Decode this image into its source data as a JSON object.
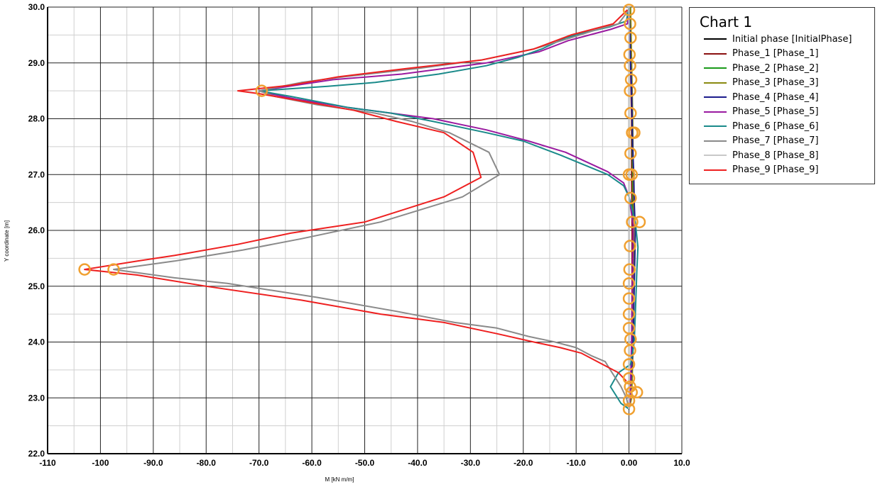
{
  "chart_data": {
    "type": "line",
    "title": "Chart 1",
    "xlabel": "M [kN m/m]",
    "ylabel": "Y coordinate [m]",
    "xlim": [
      -110,
      10
    ],
    "ylim": [
      22,
      30
    ],
    "grid": true,
    "legend_position": "right",
    "x_ticks": [
      "-110",
      "-100",
      "-90.0",
      "-80.0",
      "-70.0",
      "-60.0",
      "-50.0",
      "-40.0",
      "-30.0",
      "-20.0",
      "-10.0",
      "0.00",
      "10.0"
    ],
    "y_ticks": [
      "22.0",
      "23.0",
      "24.0",
      "25.0",
      "26.0",
      "27.0",
      "28.0",
      "29.0",
      "30.0"
    ],
    "series": [
      {
        "name": "Initial phase [InitialPhase]",
        "color": "#000000",
        "points": [
          [
            0,
            30.0
          ],
          [
            0,
            29.0
          ],
          [
            0,
            28.0
          ],
          [
            0,
            27.0
          ],
          [
            0,
            26.0
          ],
          [
            0,
            25.0
          ],
          [
            0,
            24.0
          ],
          [
            0,
            23.0
          ],
          [
            0,
            22.8
          ]
        ]
      },
      {
        "name": "Phase_1 [Phase_1]",
        "color": "#8b1010",
        "points": [
          [
            0.2,
            30.0
          ],
          [
            0.3,
            29.0
          ],
          [
            0.5,
            28.0
          ],
          [
            0.5,
            27.0
          ],
          [
            0.6,
            26.0
          ],
          [
            0.6,
            25.0
          ],
          [
            0.5,
            24.0
          ],
          [
            0.3,
            23.0
          ],
          [
            0,
            22.8
          ]
        ]
      },
      {
        "name": "Phase_2 [Phase_2]",
        "color": "#1a9a1a",
        "points": [
          [
            0.2,
            30.0
          ],
          [
            0.4,
            29.0
          ],
          [
            0.6,
            28.0
          ],
          [
            0.7,
            27.0
          ],
          [
            0.8,
            26.0
          ],
          [
            0.8,
            25.0
          ],
          [
            0.7,
            24.0
          ],
          [
            0.4,
            23.0
          ],
          [
            0,
            22.8
          ]
        ]
      },
      {
        "name": "Phase_3 [Phase_3]",
        "color": "#8a8a10",
        "points": [
          [
            0.3,
            30.0
          ],
          [
            0.5,
            29.0
          ],
          [
            0.7,
            28.0
          ],
          [
            0.8,
            27.0
          ],
          [
            0.9,
            26.0
          ],
          [
            0.9,
            25.0
          ],
          [
            0.8,
            24.0
          ],
          [
            0.5,
            23.0
          ],
          [
            0,
            22.8
          ]
        ]
      },
      {
        "name": "Phase_4 [Phase_4]",
        "color": "#1c1c8c",
        "points": [
          [
            0,
            30.0
          ],
          [
            0.2,
            29.5
          ],
          [
            0.3,
            29.0
          ],
          [
            0.5,
            28.5
          ],
          [
            0.6,
            28.0
          ],
          [
            0.7,
            27.5
          ],
          [
            0.9,
            27.0
          ],
          [
            1.0,
            26.5
          ],
          [
            1.2,
            26.0
          ],
          [
            1.1,
            25.5
          ],
          [
            1.0,
            25.0
          ],
          [
            0.9,
            24.5
          ],
          [
            0.8,
            24.0
          ],
          [
            0.5,
            23.5
          ],
          [
            0.2,
            23.0
          ],
          [
            0,
            22.8
          ]
        ]
      },
      {
        "name": "Phase_5 [Phase_5]",
        "color": "#9a1aa0",
        "points": [
          [
            0,
            30.0
          ],
          [
            -0.3,
            29.7
          ],
          [
            -3.5,
            29.6
          ],
          [
            -7.5,
            29.5
          ],
          [
            -11.5,
            29.4
          ],
          [
            -17,
            29.2
          ],
          [
            -27,
            29.0
          ],
          [
            -43,
            28.8
          ],
          [
            -56,
            28.7
          ],
          [
            -70,
            28.5
          ],
          [
            -68,
            28.45
          ],
          [
            -63,
            28.35
          ],
          [
            -53,
            28.2
          ],
          [
            -45,
            28.1
          ],
          [
            -37,
            28.0
          ],
          [
            -27,
            27.8
          ],
          [
            -19,
            27.6
          ],
          [
            -12,
            27.4
          ],
          [
            -4,
            27.05
          ],
          [
            -1,
            26.85
          ],
          [
            0,
            26.6
          ],
          [
            0.8,
            26.1
          ],
          [
            0.7,
            25.3
          ],
          [
            0.5,
            24.0
          ],
          [
            0.2,
            23.0
          ],
          [
            0,
            22.8
          ]
        ]
      },
      {
        "name": "Phase_6 [Phase_6]",
        "color": "#1a8a8a",
        "points": [
          [
            0,
            30.0
          ],
          [
            -0.5,
            29.75
          ],
          [
            -3.5,
            29.65
          ],
          [
            -8,
            29.55
          ],
          [
            -12,
            29.45
          ],
          [
            -16.5,
            29.25
          ],
          [
            -21,
            29.1
          ],
          [
            -27,
            28.95
          ],
          [
            -36,
            28.8
          ],
          [
            -48,
            28.65
          ],
          [
            -57,
            28.58
          ],
          [
            -70,
            28.5
          ],
          [
            -67,
            28.45
          ],
          [
            -64,
            28.4
          ],
          [
            -53,
            28.2
          ],
          [
            -45,
            28.1
          ],
          [
            -37,
            27.95
          ],
          [
            -27,
            27.75
          ],
          [
            -20,
            27.6
          ],
          [
            -13,
            27.35
          ],
          [
            -4,
            27.0
          ],
          [
            -1,
            26.8
          ],
          [
            0,
            26.6
          ],
          [
            1.2,
            26.15
          ],
          [
            1.7,
            25.7
          ],
          [
            1.5,
            25.3
          ],
          [
            1.2,
            24.5
          ],
          [
            1.0,
            24.0
          ],
          [
            0.3,
            23.6
          ],
          [
            -2.0,
            23.45
          ],
          [
            -3.5,
            23.2
          ],
          [
            -1.5,
            22.9
          ],
          [
            0,
            22.8
          ]
        ]
      },
      {
        "name": "Phase_7 [Phase_7]",
        "color": "#8a8a8a",
        "points": [
          [
            0,
            29.95
          ],
          [
            -2,
            29.7
          ],
          [
            -6,
            29.6
          ],
          [
            -11,
            29.45
          ],
          [
            -18,
            29.25
          ],
          [
            -28,
            29.05
          ],
          [
            -40,
            28.9
          ],
          [
            -54,
            28.75
          ],
          [
            -62,
            28.65
          ],
          [
            -70,
            28.5
          ],
          [
            -67,
            28.4
          ],
          [
            -59,
            28.25
          ],
          [
            -48,
            28.1
          ],
          [
            -41,
            27.95
          ],
          [
            -34,
            27.75
          ],
          [
            -26.5,
            27.4
          ],
          [
            -24.5,
            27.0
          ],
          [
            -31.5,
            26.6
          ],
          [
            -47,
            26.15
          ],
          [
            -62,
            25.85
          ],
          [
            -73,
            25.65
          ],
          [
            -86,
            25.45
          ],
          [
            -97.5,
            25.3
          ],
          [
            -86,
            25.15
          ],
          [
            -76,
            25.05
          ],
          [
            -59,
            24.8
          ],
          [
            -44,
            24.55
          ],
          [
            -33,
            24.35
          ],
          [
            -25,
            24.25
          ],
          [
            -19,
            24.1
          ],
          [
            -14,
            24.0
          ],
          [
            -10,
            23.9
          ],
          [
            -7,
            23.75
          ],
          [
            -4.5,
            23.65
          ],
          [
            -3.2,
            23.45
          ],
          [
            -1.5,
            23.2
          ],
          [
            -0.5,
            23.0
          ],
          [
            0,
            22.8
          ]
        ]
      },
      {
        "name": "Phase_8 [Phase_8]",
        "color": "#c8c8c8",
        "points": [
          [
            0,
            30.0
          ],
          [
            0,
            28.5
          ],
          [
            0,
            27.0
          ],
          [
            0,
            25.3
          ],
          [
            0,
            23.0
          ],
          [
            0,
            22.8
          ]
        ]
      },
      {
        "name": "Phase_9 [Phase_9]",
        "color": "#ee2020",
        "points": [
          [
            -0.3,
            29.95
          ],
          [
            -3,
            29.7
          ],
          [
            -7,
            29.6
          ],
          [
            -11,
            29.5
          ],
          [
            -18,
            29.25
          ],
          [
            -28,
            29.05
          ],
          [
            -42,
            28.9
          ],
          [
            -55,
            28.75
          ],
          [
            -64,
            28.6
          ],
          [
            -74,
            28.5
          ],
          [
            -70,
            28.45
          ],
          [
            -64,
            28.35
          ],
          [
            -52,
            28.15
          ],
          [
            -44,
            27.95
          ],
          [
            -35,
            27.75
          ],
          [
            -29.5,
            27.4
          ],
          [
            -28,
            26.95
          ],
          [
            -35,
            26.6
          ],
          [
            -50,
            26.15
          ],
          [
            -64,
            25.95
          ],
          [
            -74,
            25.75
          ],
          [
            -86,
            25.55
          ],
          [
            -93,
            25.45
          ],
          [
            -103,
            25.3
          ],
          [
            -93,
            25.2
          ],
          [
            -80,
            25.0
          ],
          [
            -62,
            24.75
          ],
          [
            -47,
            24.5
          ],
          [
            -35,
            24.35
          ],
          [
            -25,
            24.15
          ],
          [
            -18,
            24.0
          ],
          [
            -13,
            23.9
          ],
          [
            -9,
            23.8
          ],
          [
            -5,
            23.6
          ],
          [
            -2,
            23.45
          ],
          [
            -0.5,
            23.3
          ]
        ]
      }
    ],
    "markers": [
      [
        0.0,
        29.95
      ],
      [
        0.2,
        29.7
      ],
      [
        0.3,
        29.45
      ],
      [
        0.1,
        29.15
      ],
      [
        0.2,
        28.95
      ],
      [
        0.4,
        28.7
      ],
      [
        0.2,
        28.5
      ],
      [
        0.3,
        28.1
      ],
      [
        0.6,
        27.75
      ],
      [
        1.0,
        27.75
      ],
      [
        0.3,
        27.38
      ],
      [
        0.0,
        27.0
      ],
      [
        0.5,
        27.0
      ],
      [
        0.3,
        26.58
      ],
      [
        0.6,
        26.15
      ],
      [
        2.0,
        26.15
      ],
      [
        0.2,
        25.72
      ],
      [
        0.1,
        25.3
      ],
      [
        0.0,
        25.05
      ],
      [
        0.0,
        24.78
      ],
      [
        0.0,
        24.5
      ],
      [
        0.0,
        24.25
      ],
      [
        0.3,
        24.05
      ],
      [
        0.2,
        23.85
      ],
      [
        0.0,
        23.6
      ],
      [
        0.0,
        23.35
      ],
      [
        0.2,
        23.2
      ],
      [
        0.5,
        23.1
      ],
      [
        1.5,
        23.1
      ],
      [
        0.0,
        22.95
      ],
      [
        0.0,
        22.8
      ],
      [
        -69.5,
        28.5
      ],
      [
        -103,
        25.3
      ],
      [
        -97.5,
        25.3
      ]
    ]
  }
}
